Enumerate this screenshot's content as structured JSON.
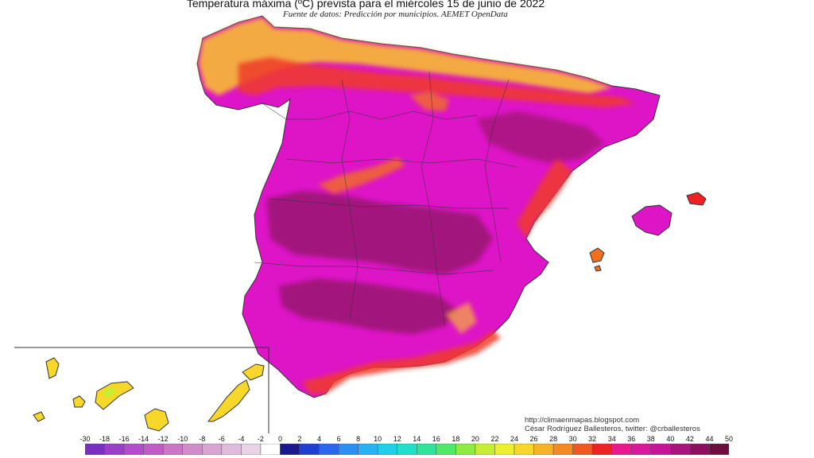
{
  "map": {
    "title": "Temperatura máxima (ºC) prevista para el miércoles 15 de junio de 2022",
    "subtitle": "Fuente de datos: Predicción por municipios. AEMET OpenData",
    "credits": [
      "http://climaenmapas.blogspot.com",
      "César Rodríguez Ballesteros, twitter: @crballesteros"
    ]
  },
  "legend": {
    "ticks": [
      "-30",
      "-18",
      "-16",
      "-14",
      "-12",
      "-10",
      "-8",
      "-6",
      "-4",
      "-2",
      "0",
      "2",
      "4",
      "6",
      "8",
      "10",
      "12",
      "14",
      "16",
      "18",
      "20",
      "22",
      "24",
      "26",
      "28",
      "30",
      "32",
      "34",
      "36",
      "38",
      "40",
      "42",
      "44",
      "50"
    ],
    "colors": [
      "#7b2fbf",
      "#9b3fc8",
      "#b34ccd",
      "#c25bc8",
      "#cc74c6",
      "#d28ccb",
      "#d9a4d3",
      "#e0bcdc",
      "#e8d4e6",
      "#ffffff",
      "#1a1a8c",
      "#1f3fd0",
      "#2a66ee",
      "#2f8df4",
      "#27b2f2",
      "#1fd0e8",
      "#22dfc9",
      "#2ee39a",
      "#4fe868",
      "#8cec44",
      "#c6ee33",
      "#eef02d",
      "#f6d72a",
      "#f7b328",
      "#f38b25",
      "#ef5a22",
      "#ee2222",
      "#e8188e",
      "#d9179f",
      "#c5169a",
      "#a8137d",
      "#8c1060",
      "#6d0d3d"
    ]
  }
}
